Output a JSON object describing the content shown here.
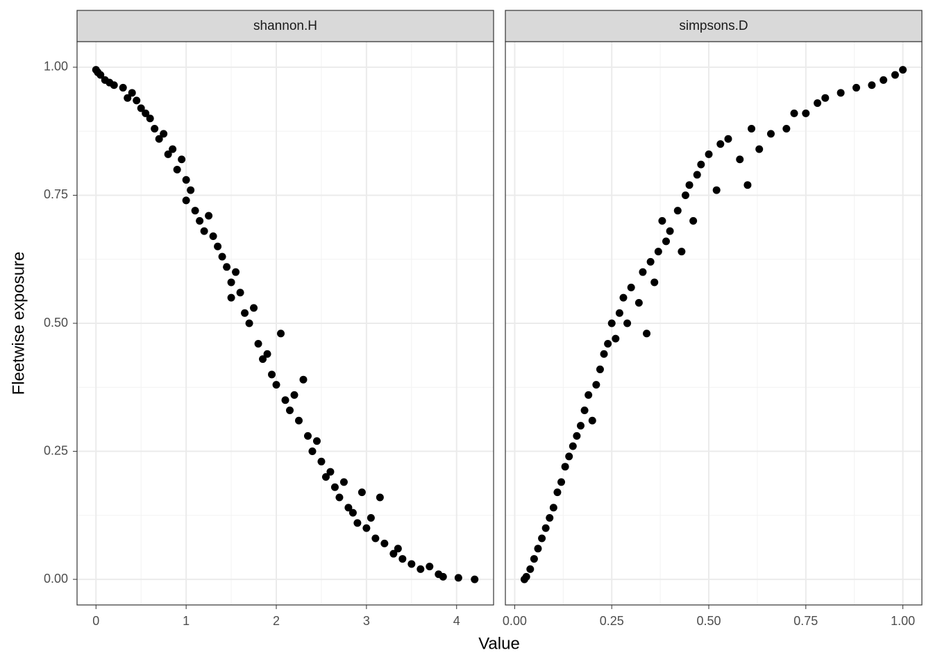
{
  "chart_data": {
    "type": "scatter",
    "x_label": "Value",
    "y_label": "Fleetwise exposure",
    "color": "#000000",
    "grid": true,
    "ylim": [
      -0.05,
      1.05
    ],
    "yticks": [
      {
        "value": 0,
        "label": "0.00"
      },
      {
        "value": 0.25,
        "label": "0.25"
      },
      {
        "value": 0.5,
        "label": "0.50"
      },
      {
        "value": 0.75,
        "label": "0.75"
      },
      {
        "value": 1,
        "label": "1.00"
      }
    ],
    "yminor": [
      0.125,
      0.375,
      0.625,
      0.875
    ],
    "facets": [
      {
        "title": "shannon.H",
        "xlim": [
          -0.21,
          4.41
        ],
        "xticks": [
          0,
          1,
          2,
          3,
          4
        ],
        "xminor": [
          0.5,
          1.5,
          2.5,
          3.5
        ],
        "x": [
          0,
          0.02,
          0.05,
          0.1,
          0.15,
          0.2,
          0.3,
          0.35,
          0.4,
          0.45,
          0.5,
          0.55,
          0.6,
          0.65,
          0.7,
          0.75,
          0.8,
          0.85,
          0.9,
          0.95,
          1.0,
          1.0,
          1.05,
          1.1,
          1.15,
          1.2,
          1.25,
          1.3,
          1.35,
          1.4,
          1.45,
          1.5,
          1.5,
          1.55,
          1.6,
          1.65,
          1.7,
          1.75,
          1.8,
          1.85,
          1.9,
          1.95,
          2.0,
          2.05,
          2.1,
          2.15,
          2.2,
          2.25,
          2.3,
          2.35,
          2.4,
          2.45,
          2.5,
          2.55,
          2.6,
          2.65,
          2.7,
          2.75,
          2.8,
          2.85,
          2.9,
          2.95,
          3.0,
          3.05,
          3.1,
          3.15,
          3.2,
          3.3,
          3.35,
          3.4,
          3.5,
          3.6,
          3.7,
          3.8,
          3.85,
          4.02,
          4.2
        ],
        "values": [
          0.995,
          0.99,
          0.985,
          0.975,
          0.97,
          0.965,
          0.96,
          0.94,
          0.95,
          0.935,
          0.92,
          0.91,
          0.9,
          0.88,
          0.86,
          0.87,
          0.83,
          0.84,
          0.8,
          0.82,
          0.78,
          0.74,
          0.76,
          0.72,
          0.7,
          0.68,
          0.71,
          0.67,
          0.65,
          0.63,
          0.61,
          0.58,
          0.55,
          0.6,
          0.56,
          0.52,
          0.5,
          0.53,
          0.46,
          0.43,
          0.44,
          0.4,
          0.38,
          0.48,
          0.35,
          0.33,
          0.36,
          0.31,
          0.39,
          0.28,
          0.25,
          0.27,
          0.23,
          0.2,
          0.21,
          0.18,
          0.16,
          0.19,
          0.14,
          0.13,
          0.11,
          0.17,
          0.1,
          0.12,
          0.08,
          0.16,
          0.07,
          0.05,
          0.06,
          0.04,
          0.03,
          0.02,
          0.025,
          0.01,
          0.005,
          0.003,
          0.0
        ]
      },
      {
        "title": "simpsons.D",
        "xlim": [
          -0.024,
          1.049
        ],
        "xticks": [
          {
            "value": 0,
            "label": "0.00"
          },
          {
            "value": 0.25,
            "label": "0.25"
          },
          {
            "value": 0.5,
            "label": "0.50"
          },
          {
            "value": 0.75,
            "label": "0.75"
          },
          {
            "value": 1,
            "label": "1.00"
          }
        ],
        "xminor": [
          0.125,
          0.375,
          0.625,
          0.875
        ],
        "x": [
          0.025,
          0.03,
          0.04,
          0.05,
          0.06,
          0.07,
          0.08,
          0.09,
          0.1,
          0.11,
          0.12,
          0.13,
          0.14,
          0.15,
          0.16,
          0.17,
          0.18,
          0.19,
          0.2,
          0.21,
          0.22,
          0.23,
          0.24,
          0.25,
          0.26,
          0.27,
          0.28,
          0.29,
          0.3,
          0.32,
          0.33,
          0.34,
          0.35,
          0.36,
          0.37,
          0.38,
          0.39,
          0.4,
          0.42,
          0.43,
          0.44,
          0.45,
          0.46,
          0.47,
          0.48,
          0.5,
          0.52,
          0.53,
          0.55,
          0.58,
          0.6,
          0.61,
          0.63,
          0.66,
          0.7,
          0.72,
          0.75,
          0.78,
          0.8,
          0.84,
          0.88,
          0.92,
          0.95,
          0.98,
          1.0
        ],
        "values": [
          0,
          0.005,
          0.02,
          0.04,
          0.06,
          0.08,
          0.1,
          0.12,
          0.14,
          0.17,
          0.19,
          0.22,
          0.24,
          0.26,
          0.28,
          0.3,
          0.33,
          0.36,
          0.31,
          0.38,
          0.41,
          0.44,
          0.46,
          0.5,
          0.47,
          0.52,
          0.55,
          0.5,
          0.57,
          0.54,
          0.6,
          0.48,
          0.62,
          0.58,
          0.64,
          0.7,
          0.66,
          0.68,
          0.72,
          0.64,
          0.75,
          0.77,
          0.7,
          0.79,
          0.81,
          0.83,
          0.76,
          0.85,
          0.86,
          0.82,
          0.77,
          0.88,
          0.84,
          0.87,
          0.88,
          0.91,
          0.91,
          0.93,
          0.94,
          0.95,
          0.96,
          0.965,
          0.975,
          0.985,
          0.995
        ]
      }
    ]
  }
}
